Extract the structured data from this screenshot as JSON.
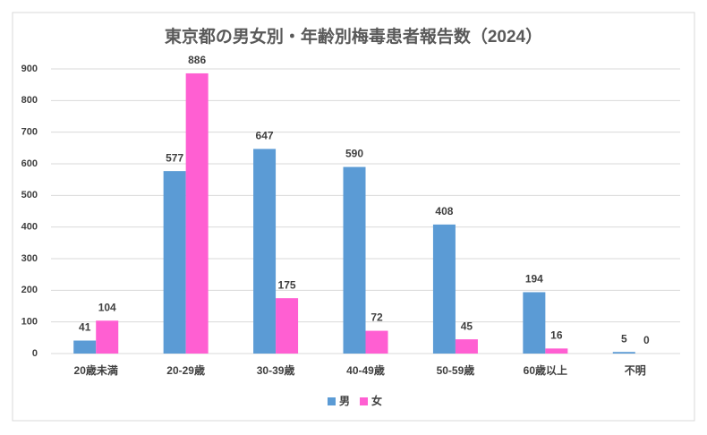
{
  "chart_data": {
    "type": "bar",
    "title": "東京都の男女別・年齢別梅毒患者報告数（2024）",
    "categories": [
      "20歳未満",
      "20-29歳",
      "30-39歳",
      "40-49歳",
      "50-59歳",
      "60歳以上",
      "不明"
    ],
    "series": [
      {
        "name": "男",
        "color": "#5b9bd5",
        "values": [
          41,
          577,
          647,
          590,
          408,
          194,
          5
        ]
      },
      {
        "name": "女",
        "color": "#ff5fd2",
        "values": [
          104,
          886,
          175,
          72,
          45,
          16,
          0
        ]
      }
    ],
    "ylim": [
      0,
      900
    ],
    "yticks": [
      0,
      100,
      200,
      300,
      400,
      500,
      600,
      700,
      800,
      900
    ],
    "grid": true,
    "legend": "bottom"
  }
}
